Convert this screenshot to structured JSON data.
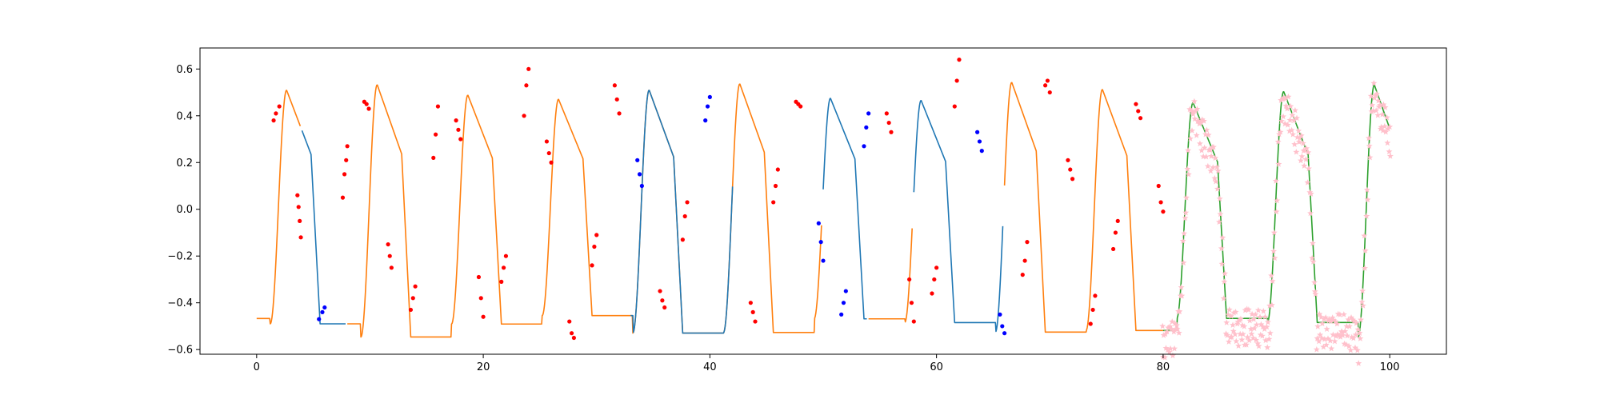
{
  "chart_data": {
    "type": "line",
    "title": "",
    "xlabel": "",
    "ylabel": "",
    "xlim": [
      -5,
      105
    ],
    "ylim": [
      -0.62,
      0.69
    ],
    "x_ticks": [
      0,
      20,
      40,
      60,
      80,
      100
    ],
    "y_ticks": [
      -0.6,
      -0.4,
      -0.2,
      0.0,
      0.2,
      0.4,
      0.6
    ],
    "x_tick_labels": [
      "0",
      "20",
      "40",
      "60",
      "80",
      "100"
    ],
    "y_tick_labels": [
      "−0.6",
      "−0.4",
      "−0.2",
      "0.0",
      "0.2",
      "0.4",
      "0.6"
    ],
    "grid": false,
    "legend": "none",
    "colors": {
      "context_line": "#ff7f0e",
      "target_line": "#1f77b4",
      "forecast_line": "#2ca02c",
      "context_points": "#ff0000",
      "target_points": "#0000ff",
      "forecast_points": "#ffc0cb"
    },
    "series": [
      {
        "role": "line",
        "color": "#ff7f0e",
        "x_range": [
          0,
          3.85
        ]
      },
      {
        "role": "line",
        "color": "#1f77b4",
        "x_range": [
          4.0,
          7.85
        ]
      },
      {
        "role": "line",
        "color": "#ff7f0e",
        "x_range": [
          8.0,
          49.85
        ]
      },
      {
        "role": "line",
        "color": "#1f77b4",
        "x_range": [
          33.0,
          42.0
        ]
      },
      {
        "role": "line",
        "color": "#1f77b4",
        "x_range": [
          50.0,
          53.85
        ]
      },
      {
        "role": "line",
        "color": "#ff7f0e",
        "x_range": [
          54.0,
          57.85
        ]
      },
      {
        "role": "line",
        "color": "#1f77b4",
        "x_range": [
          58.0,
          65.85
        ]
      },
      {
        "role": "line",
        "color": "#ff7f0e",
        "x_range": [
          66.0,
          80.0
        ]
      },
      {
        "role": "line",
        "color": "#2ca02c",
        "x_range": [
          80.0,
          100.0
        ]
      },
      {
        "role": "points",
        "color": "#ff0000",
        "points": [
          [
            1.5,
            0.38
          ],
          [
            1.7,
            0.41
          ],
          [
            2.0,
            0.44
          ],
          [
            3.6,
            0.06
          ],
          [
            3.7,
            0.01
          ],
          [
            3.8,
            -0.05
          ],
          [
            3.9,
            -0.12
          ],
          [
            7.6,
            0.05
          ],
          [
            7.75,
            0.15
          ],
          [
            7.9,
            0.21
          ],
          [
            8.0,
            0.27
          ],
          [
            9.5,
            0.46
          ],
          [
            9.7,
            0.45
          ],
          [
            9.9,
            0.43
          ],
          [
            11.6,
            -0.15
          ],
          [
            11.75,
            -0.2
          ],
          [
            11.9,
            -0.25
          ],
          [
            13.6,
            -0.43
          ],
          [
            13.8,
            -0.38
          ],
          [
            14.0,
            -0.33
          ],
          [
            15.6,
            0.22
          ],
          [
            15.8,
            0.32
          ],
          [
            16.0,
            0.44
          ],
          [
            17.6,
            0.38
          ],
          [
            17.8,
            0.34
          ],
          [
            18.0,
            0.3
          ],
          [
            19.6,
            -0.29
          ],
          [
            19.8,
            -0.38
          ],
          [
            20.0,
            -0.46
          ],
          [
            21.6,
            -0.31
          ],
          [
            21.8,
            -0.25
          ],
          [
            22.0,
            -0.2
          ],
          [
            23.6,
            0.4
          ],
          [
            23.8,
            0.53
          ],
          [
            24.0,
            0.6
          ],
          [
            25.6,
            0.29
          ],
          [
            25.8,
            0.24
          ],
          [
            26.0,
            0.2
          ],
          [
            27.6,
            -0.48
          ],
          [
            27.8,
            -0.53
          ],
          [
            28.0,
            -0.55
          ],
          [
            29.6,
            -0.24
          ],
          [
            29.8,
            -0.16
          ],
          [
            30.0,
            -0.11
          ],
          [
            31.6,
            0.53
          ],
          [
            31.8,
            0.47
          ],
          [
            32.0,
            0.41
          ],
          [
            35.6,
            -0.35
          ],
          [
            35.8,
            -0.39
          ],
          [
            36.0,
            -0.42
          ],
          [
            37.6,
            -0.13
          ],
          [
            37.8,
            -0.03
          ],
          [
            38.0,
            0.03
          ],
          [
            43.6,
            -0.4
          ],
          [
            43.8,
            -0.44
          ],
          [
            44.0,
            -0.48
          ],
          [
            45.6,
            0.03
          ],
          [
            45.8,
            0.1
          ],
          [
            46.0,
            0.17
          ],
          [
            47.6,
            0.46
          ],
          [
            47.8,
            0.45
          ],
          [
            48.0,
            0.44
          ],
          [
            55.6,
            0.41
          ],
          [
            55.8,
            0.37
          ],
          [
            56.0,
            0.33
          ],
          [
            57.6,
            -0.3
          ],
          [
            57.8,
            -0.4
          ],
          [
            58.0,
            -0.48
          ],
          [
            59.6,
            -0.36
          ],
          [
            59.8,
            -0.3
          ],
          [
            60.0,
            -0.25
          ],
          [
            61.6,
            0.44
          ],
          [
            61.8,
            0.55
          ],
          [
            62.0,
            0.64
          ],
          [
            67.6,
            -0.28
          ],
          [
            67.8,
            -0.22
          ],
          [
            68.0,
            -0.14
          ],
          [
            69.6,
            0.53
          ],
          [
            69.8,
            0.55
          ],
          [
            70.0,
            0.5
          ],
          [
            71.6,
            0.21
          ],
          [
            71.8,
            0.17
          ],
          [
            72.0,
            0.13
          ],
          [
            73.6,
            -0.49
          ],
          [
            73.8,
            -0.43
          ],
          [
            74.0,
            -0.37
          ],
          [
            75.6,
            -0.17
          ],
          [
            75.8,
            -0.1
          ],
          [
            76.0,
            -0.05
          ],
          [
            77.6,
            0.45
          ],
          [
            77.8,
            0.42
          ],
          [
            78.0,
            0.39
          ],
          [
            79.6,
            0.1
          ],
          [
            79.8,
            0.03
          ],
          [
            80.0,
            -0.01
          ]
        ]
      },
      {
        "role": "points",
        "color": "#0000ff",
        "points": [
          [
            5.5,
            -0.47
          ],
          [
            5.8,
            -0.44
          ],
          [
            6.0,
            -0.42
          ],
          [
            33.6,
            0.21
          ],
          [
            33.8,
            0.15
          ],
          [
            34.0,
            0.1
          ],
          [
            39.6,
            0.38
          ],
          [
            39.8,
            0.44
          ],
          [
            40.0,
            0.48
          ],
          [
            49.6,
            -0.06
          ],
          [
            49.8,
            -0.14
          ],
          [
            50.0,
            -0.22
          ],
          [
            51.6,
            -0.45
          ],
          [
            51.8,
            -0.4
          ],
          [
            52.0,
            -0.35
          ],
          [
            53.6,
            0.27
          ],
          [
            53.8,
            0.35
          ],
          [
            54.0,
            0.41
          ],
          [
            63.6,
            0.33
          ],
          [
            63.8,
            0.29
          ],
          [
            64.0,
            0.25
          ],
          [
            65.6,
            -0.45
          ],
          [
            65.8,
            -0.5
          ],
          [
            66.0,
            -0.53
          ]
        ]
      },
      {
        "role": "points",
        "color": "#ffc0cb",
        "sample_count_per_x": 3,
        "x_range": [
          80.0,
          100.0
        ],
        "x_step": 0.2
      }
    ]
  }
}
